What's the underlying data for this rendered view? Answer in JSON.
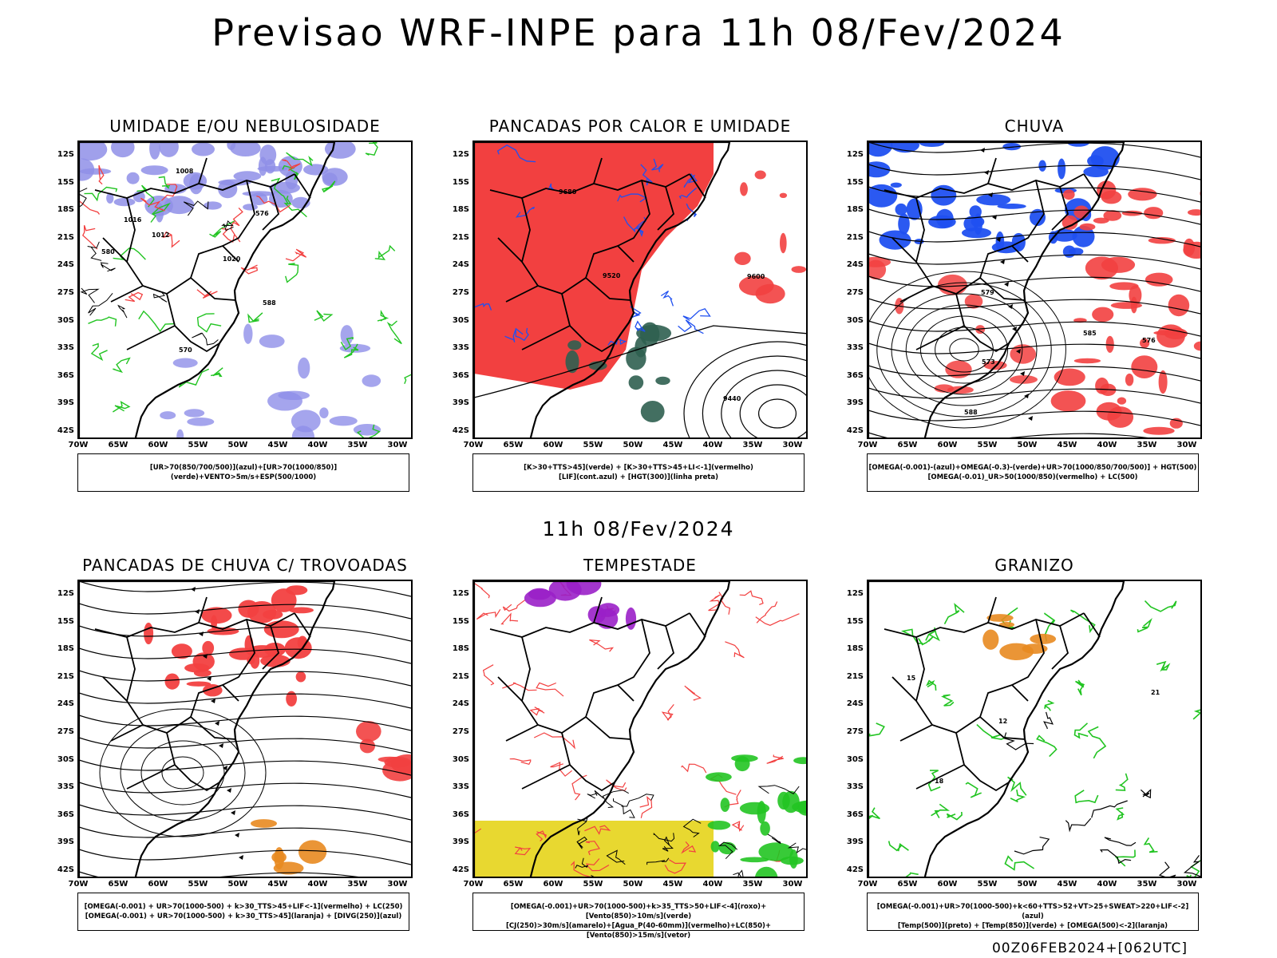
{
  "header": {
    "title": "Previsao WRF-INPE  para 11h 08/Fev/2024"
  },
  "middle": {
    "subtitle": "11h 08/Fev/2024"
  },
  "footer": {
    "run_info": "00Z06FEB2024+[062UTC]"
  },
  "axes": {
    "y_labels": [
      "12S",
      "15S",
      "18S",
      "21S",
      "24S",
      "27S",
      "30S",
      "33S",
      "36S",
      "39S",
      "42S"
    ],
    "x_labels": [
      "70W",
      "65W",
      "60W",
      "55W",
      "50W",
      "45W",
      "40W",
      "35W",
      "30W"
    ]
  },
  "panels": [
    {
      "title": "UMIDADE E/OU NEBULOSIDADE",
      "legend": [
        "[UR>70(850/700/500)](azul)+[UR>70(1000/850)](verde)+VENTO>5m/s+ESP(500/1000)"
      ],
      "contour_labels": [
        "1012",
        "1016",
        "1020",
        "1008",
        "570",
        "576",
        "580",
        "588"
      ]
    },
    {
      "title": "PANCADAS POR CALOR E UMIDADE",
      "legend": [
        "[K>30+TTS>45](verde) + [K>30+TTS>45+LI<-1](vermelho)",
        "[LIF](cont.azul) + [HGT(300)](linha preta)"
      ],
      "contour_labels": [
        "9680",
        "9600",
        "9520",
        "9440"
      ]
    },
    {
      "title": "CHUVA",
      "legend": [
        "[OMEGA(-0.001)-(azul)+OMEGA(-0.3)-(verde)+UR>70(1000/850/700/500)] + HGT(500)",
        "[OMEGA(-0.01)_UR>50(1000/850)(vermelho) + LC(500)"
      ],
      "contour_labels": [
        "588",
        "585",
        "579",
        "573",
        "576"
      ]
    },
    {
      "title": "PANCADAS DE CHUVA C/ TROVOADAS",
      "legend": [
        "[OMEGA(-0.001) + UR>70(1000-500) + k>30_TTS>45+LIF<-1](vermelho) + LC(250)",
        "[OMEGA(-0.001) + UR>70(1000-500) + k>30_TTS>45](laranja) + [DIVG(250)](azul)"
      ],
      "contour_labels": []
    },
    {
      "title": "TEMPESTADE",
      "legend": [
        "[OMEGA(-0.001)+UR>70(1000-500)+k>35_TTS>50+LIF<-4](roxo)+[Vento(850)>10m/s](verde)",
        "[CJ(250)>30m/s](amarelo)+[Agua_P(40-60mm)](vermelho)+LC(850)+[Vento(850)>15m/s](vetor)"
      ],
      "contour_labels": []
    },
    {
      "title": "GRANIZO",
      "legend": [
        "[OMEGA(-0.001)+UR>70(1000-500)+k<60+TTS>52+VT>25+SWEAT>220+LIF<-2](azul)",
        "[Temp(500)](preto) + [Temp(850)](verde) + [OMEGA(500)<-2](laranja)"
      ],
      "contour_labels": [
        "12",
        "15",
        "18",
        "21"
      ]
    }
  ],
  "colors": {
    "blue_fill": "#8f8fe8",
    "red": "#f24040",
    "green": "#22c422",
    "blue_line": "#2050f0",
    "yellow": "#e8d830",
    "purple": "#9a20c8",
    "orange": "#e88a20",
    "teal": "#2f5f50"
  }
}
